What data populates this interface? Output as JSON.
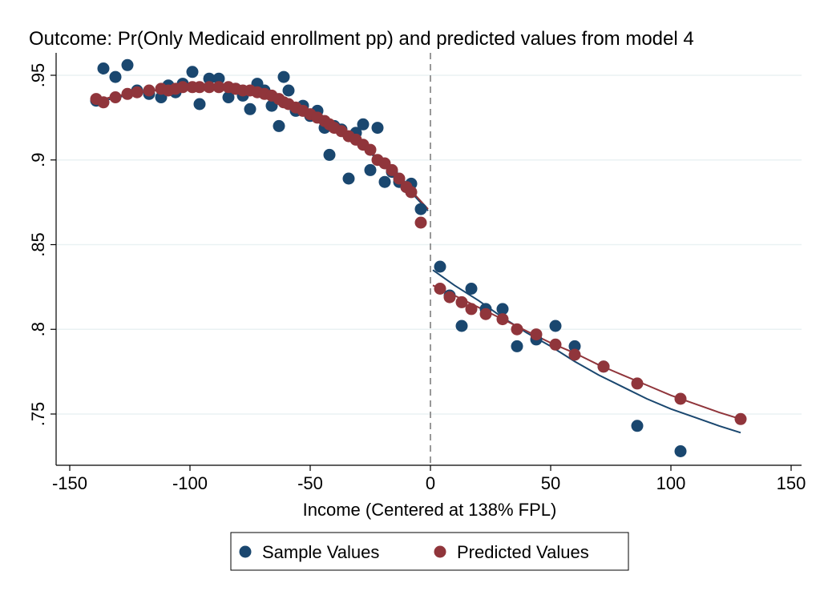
{
  "chart_data": {
    "type": "scatter",
    "title": "Outcome: Pr(Only Medicaid enrollment pp) and predicted values from model 4",
    "xlabel": "Income (Centered at 138% FPL)",
    "ylabel": "",
    "xlim": [
      -150,
      150
    ],
    "ylim": [
      0.727,
      0.962
    ],
    "x_ticks": [
      -150,
      -100,
      -50,
      0,
      50,
      100,
      150
    ],
    "x_tick_labels": [
      "-150",
      "-100",
      "-50",
      "0",
      "50",
      "100",
      "150"
    ],
    "y_ticks": [
      0.75,
      0.8,
      0.85,
      0.9,
      0.95
    ],
    "y_tick_labels": [
      ".75",
      ".8",
      ".85",
      ".9",
      ".95"
    ],
    "grid": true,
    "cutoff_x": 0,
    "legend_position": "bottom",
    "colors": {
      "sample": "#1a476f",
      "predicted": "#90353b",
      "grid": "#eaf2f3",
      "cutoff": "#7f7f7f"
    },
    "series": [
      {
        "name": "Sample Values",
        "kind": "points",
        "x": [
          -139,
          -136,
          -131,
          -126,
          -122,
          -117,
          -112,
          -109,
          -106,
          -103,
          -99,
          -96,
          -92,
          -88,
          -84,
          -81,
          -78,
          -75,
          -72,
          -69,
          -66,
          -63,
          -61,
          -59,
          -56,
          -53,
          -50,
          -47,
          -44,
          -42,
          -40,
          -37,
          -34,
          -31,
          -28,
          -25,
          -22,
          -19,
          -16,
          -13,
          -10,
          -8,
          -4,
          4,
          8,
          13,
          17,
          23,
          30,
          36,
          44,
          52,
          60,
          72,
          86,
          104
        ],
        "y": [
          0.935,
          0.954,
          0.949,
          0.956,
          0.941,
          0.939,
          0.937,
          0.944,
          0.94,
          0.945,
          0.952,
          0.933,
          0.948,
          0.948,
          0.937,
          0.942,
          0.938,
          0.93,
          0.945,
          0.941,
          0.932,
          0.92,
          0.949,
          0.941,
          0.929,
          0.932,
          0.926,
          0.929,
          0.919,
          0.903,
          0.92,
          0.918,
          0.889,
          0.916,
          0.921,
          0.894,
          0.919,
          0.887,
          0.893,
          0.887,
          0.884,
          0.886,
          0.871,
          0.837,
          0.82,
          0.802,
          0.824,
          0.812,
          0.812,
          0.79,
          0.794,
          0.802,
          0.79,
          0.778,
          0.743,
          0.728
        ]
      },
      {
        "name": "Predicted Values",
        "kind": "points",
        "x": [
          -139,
          -136,
          -131,
          -126,
          -122,
          -117,
          -112,
          -109,
          -106,
          -103,
          -99,
          -96,
          -92,
          -88,
          -84,
          -81,
          -78,
          -75,
          -72,
          -69,
          -66,
          -63,
          -61,
          -59,
          -56,
          -53,
          -50,
          -47,
          -44,
          -42,
          -40,
          -37,
          -34,
          -31,
          -28,
          -25,
          -22,
          -19,
          -16,
          -13,
          -10,
          -8,
          -4,
          4,
          8,
          13,
          17,
          23,
          30,
          36,
          44,
          52,
          60,
          72,
          86,
          104,
          129
        ],
        "y": [
          0.936,
          0.934,
          0.937,
          0.939,
          0.94,
          0.941,
          0.942,
          0.941,
          0.942,
          0.943,
          0.943,
          0.943,
          0.943,
          0.943,
          0.943,
          0.942,
          0.941,
          0.941,
          0.94,
          0.939,
          0.938,
          0.936,
          0.934,
          0.933,
          0.931,
          0.929,
          0.927,
          0.925,
          0.923,
          0.921,
          0.919,
          0.917,
          0.914,
          0.912,
          0.909,
          0.906,
          0.9,
          0.898,
          0.894,
          0.889,
          0.884,
          0.881,
          0.863,
          0.824,
          0.819,
          0.816,
          0.812,
          0.809,
          0.806,
          0.8,
          0.797,
          0.791,
          0.785,
          0.778,
          0.768,
          0.759,
          0.747
        ]
      },
      {
        "kind": "line",
        "color": "#1a476f",
        "segments": [
          {
            "x": [
              -139,
              -130,
              -120,
              -110,
              -100,
              -90,
              -80,
              -70,
              -60,
              -50,
              -40,
              -30,
              -20,
              -10,
              -1
            ],
            "y": [
              0.934,
              0.937,
              0.94,
              0.942,
              0.943,
              0.942,
              0.941,
              0.938,
              0.934,
              0.928,
              0.92,
              0.91,
              0.898,
              0.884,
              0.87
            ]
          },
          {
            "x": [
              1,
              10,
              20,
              30,
              40,
              50,
              60,
              70,
              80,
              90,
              100,
              110,
              120,
              129
            ],
            "y": [
              0.835,
              0.826,
              0.817,
              0.807,
              0.798,
              0.79,
              0.781,
              0.773,
              0.766,
              0.759,
              0.753,
              0.748,
              0.743,
              0.739
            ]
          }
        ]
      },
      {
        "kind": "line",
        "color": "#90353b",
        "segments": [
          {
            "x": [
              -139,
              -130,
              -120,
              -110,
              -100,
              -90,
              -80,
              -70,
              -60,
              -50,
              -40,
              -30,
              -20,
              -10,
              -1
            ],
            "y": [
              0.935,
              0.938,
              0.94,
              0.942,
              0.943,
              0.943,
              0.941,
              0.939,
              0.935,
              0.929,
              0.921,
              0.911,
              0.899,
              0.885,
              0.871
            ]
          },
          {
            "x": [
              1,
              10,
              20,
              30,
              40,
              50,
              60,
              70,
              80,
              90,
              100,
              110,
              120,
              129
            ],
            "y": [
              0.826,
              0.82,
              0.813,
              0.806,
              0.799,
              0.792,
              0.786,
              0.779,
              0.773,
              0.767,
              0.761,
              0.756,
              0.751,
              0.747
            ]
          }
        ]
      }
    ]
  }
}
